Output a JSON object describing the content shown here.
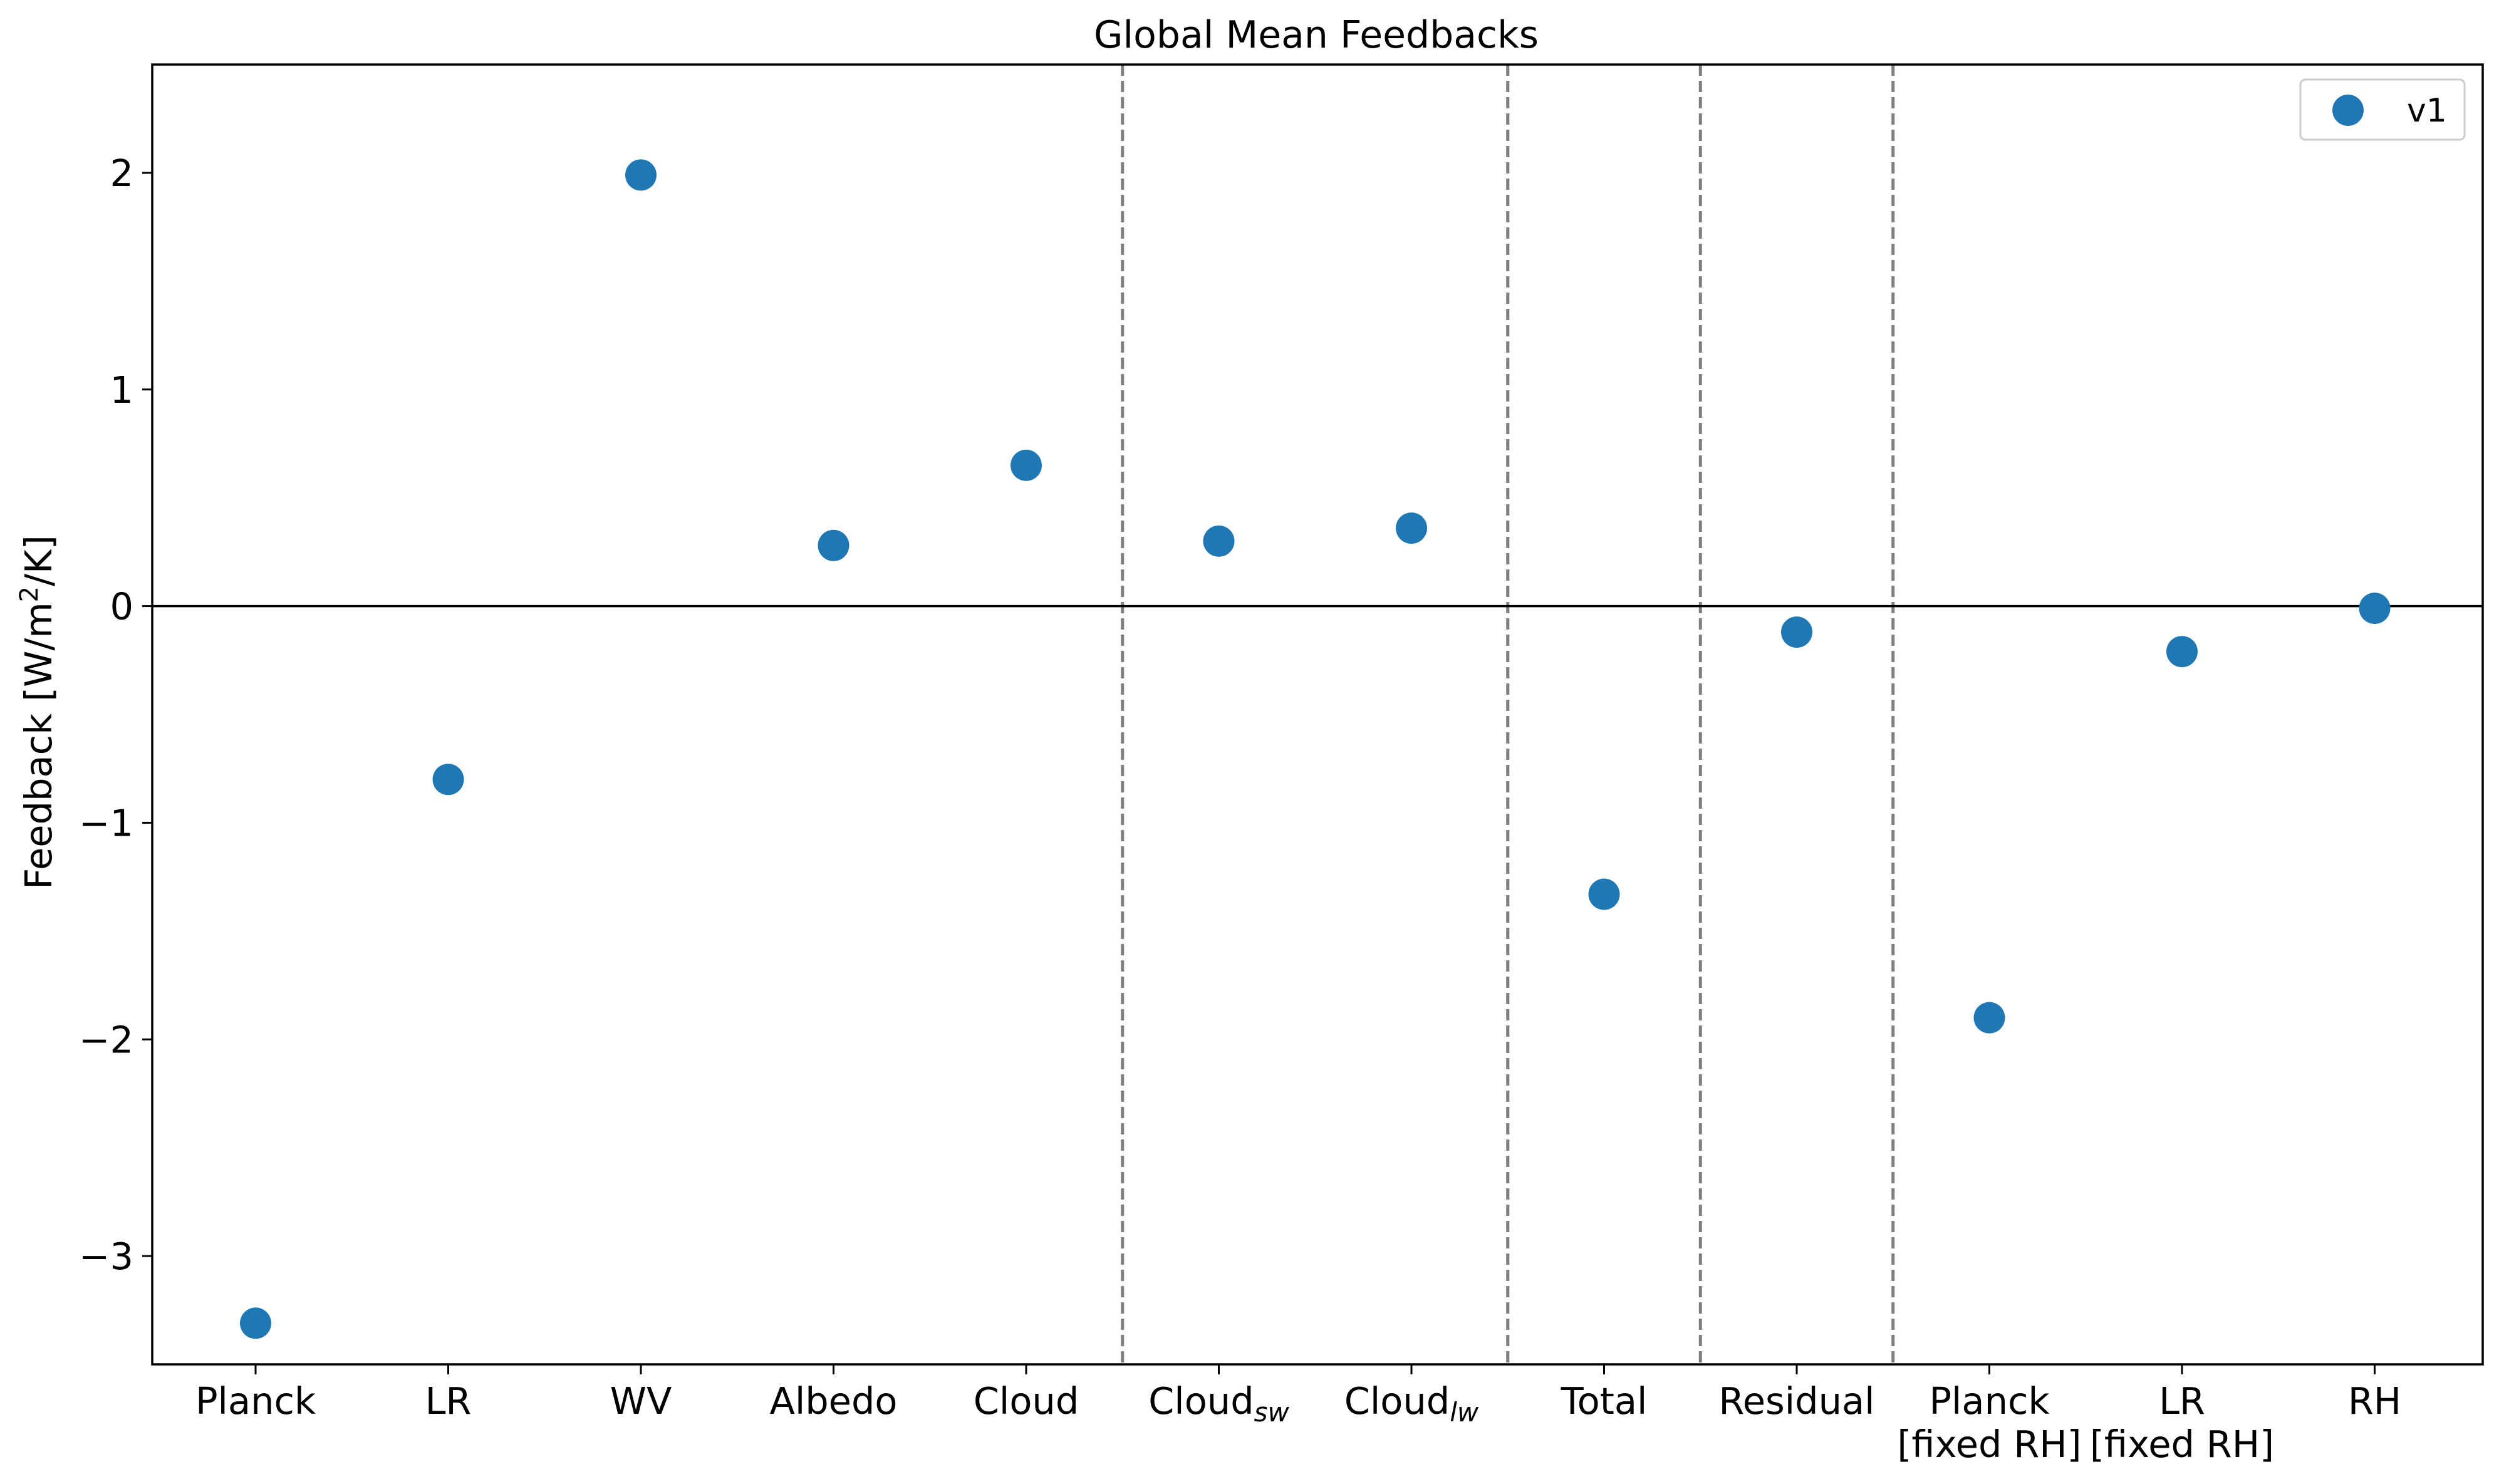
{
  "chart_data": {
    "type": "scatter",
    "title": "Global Mean Feedbacks",
    "ylabel": "Feedback [W/m²/K]",
    "ylabel_parts": {
      "main": "Feedback [W/m",
      "sup": "2",
      "tail": "/K]"
    },
    "xlabel": "",
    "ylim": [
      -3.5,
      2.5
    ],
    "yticks": [
      -3,
      -2,
      -1,
      0,
      1,
      2
    ],
    "ytick_labels": [
      "−3",
      "−2",
      "−1",
      "0",
      "1",
      "2"
    ],
    "categories": [
      {
        "main": "Planck",
        "sub": "",
        "line2": ""
      },
      {
        "main": "LR",
        "sub": "",
        "line2": ""
      },
      {
        "main": "WV",
        "sub": "",
        "line2": ""
      },
      {
        "main": "Albedo",
        "sub": "",
        "line2": ""
      },
      {
        "main": "Cloud",
        "sub": "",
        "line2": ""
      },
      {
        "main": "Cloud",
        "sub": "sw",
        "line2": ""
      },
      {
        "main": "Cloud",
        "sub": "lw",
        "line2": ""
      },
      {
        "main": "Total",
        "sub": "",
        "line2": ""
      },
      {
        "main": "Residual",
        "sub": "",
        "line2": ""
      },
      {
        "main": "Planck",
        "sub": "",
        "line2": "[fixed RH]"
      },
      {
        "main": "LR",
        "sub": "",
        "line2": "[fixed RH]"
      },
      {
        "main": "RH",
        "sub": "",
        "line2": ""
      }
    ],
    "series": [
      {
        "name": "v1",
        "color": "#1f77b4",
        "values": [
          -3.31,
          -0.8,
          1.99,
          0.28,
          0.65,
          0.3,
          0.36,
          -1.33,
          -0.12,
          -1.9,
          -0.21,
          -0.01
        ]
      }
    ],
    "zero_line": true,
    "group_separators_after_index": [
      4,
      6,
      7,
      8
    ],
    "separator_style": "dashed gray",
    "legend": {
      "placement": "top-right",
      "entries": [
        "v1"
      ]
    },
    "grid": false
  }
}
